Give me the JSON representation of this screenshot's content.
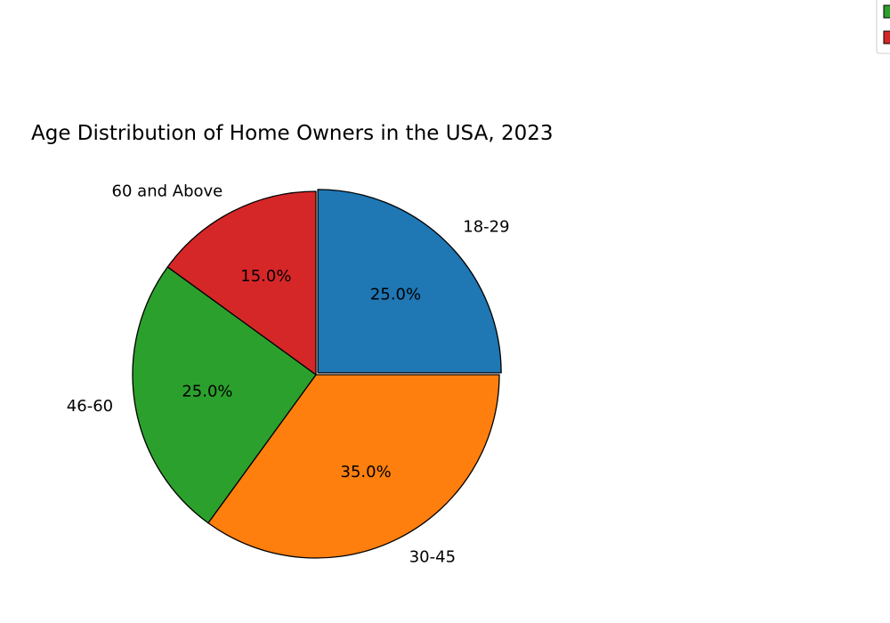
{
  "chart_data": {
    "type": "pie",
    "title": "Age Distribution of Home Owners in the USA, 2023",
    "categories": [
      "18-29",
      "30-45",
      "46-60",
      "60 and Above"
    ],
    "values": [
      25.0,
      35.0,
      25.0,
      15.0
    ],
    "percent_labels": [
      "25.0%",
      "35.0%",
      "25.0%",
      "15.0%"
    ],
    "colors": [
      "#1f77b4",
      "#ff7f0e",
      "#2ca02c",
      "#d62728"
    ],
    "exploded": [
      true,
      false,
      false,
      false
    ],
    "start_angle_deg": 90,
    "direction": "clockwise",
    "legend_placement": "top-right (partially cropped)"
  }
}
